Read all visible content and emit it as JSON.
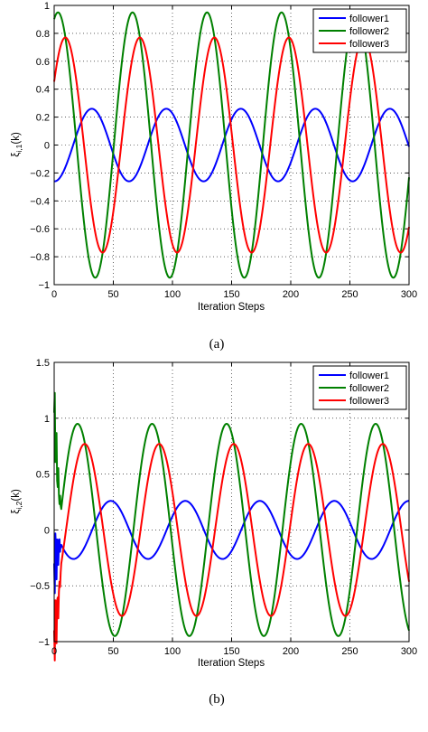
{
  "chart_data": [
    {
      "type": "line",
      "caption": "(a)",
      "xlabel": "Iteration Steps",
      "ylabel": "ξi,1(k)",
      "ylabel_main": "ξ",
      "ylabel_sub": "i,1",
      "ylabel_tail": "(k)",
      "xlim": [
        0,
        300
      ],
      "ylim": [
        -1,
        1
      ],
      "xticks": [
        0,
        50,
        100,
        150,
        200,
        250,
        300
      ],
      "yticks": [
        -1,
        -0.8,
        -0.6,
        -0.4,
        -0.2,
        0,
        0.2,
        0.4,
        0.6,
        0.8,
        1
      ],
      "ytick_labels": [
        "−1",
        "−0.8",
        "−0.6",
        "−0.4",
        "−0.2",
        "0",
        "0.2",
        "0.4",
        "0.6",
        "0.8",
        "1"
      ],
      "grid": true,
      "legend_position": "top-right",
      "series": [
        {
          "name": "follower1",
          "color": "#0000ff",
          "amplitude": 0.26,
          "period": 63,
          "phase": -1.6,
          "initial": -0.02
        },
        {
          "name": "follower2",
          "color": "#008000",
          "amplitude": 0.95,
          "period": 63,
          "phase": 1.25,
          "initial": 0.52
        },
        {
          "name": "follower3",
          "color": "#ff0000",
          "amplitude": 0.77,
          "period": 63,
          "phase": 0.63,
          "initial": 0.5
        }
      ]
    },
    {
      "type": "line",
      "caption": "(b)",
      "xlabel": "Iteration Steps",
      "ylabel": "ξi,2(k)",
      "ylabel_main": "ξ",
      "ylabel_sub": "i,2",
      "ylabel_tail": "(k)",
      "xlim": [
        0,
        300
      ],
      "ylim": [
        -1,
        1.5
      ],
      "xticks": [
        0,
        50,
        100,
        150,
        200,
        250,
        300
      ],
      "yticks": [
        -1,
        -0.5,
        0,
        0.5,
        1,
        1.5
      ],
      "ytick_labels": [
        "−1",
        "−0.5",
        "0",
        "0.5",
        "1",
        "1.5"
      ],
      "grid": true,
      "legend_position": "top-right",
      "series": [
        {
          "name": "follower1",
          "color": "#0000ff",
          "amplitude": 0.26,
          "period": 63,
          "phase": -3.2,
          "initial": -0.3
        },
        {
          "name": "follower2",
          "color": "#008000",
          "amplitude": 0.95,
          "period": 63,
          "phase": -0.4,
          "initial": 1.05
        },
        {
          "name": "follower3",
          "color": "#ff0000",
          "amplitude": 0.77,
          "period": 63,
          "phase": -1.0,
          "initial": -0.9
        }
      ]
    }
  ]
}
